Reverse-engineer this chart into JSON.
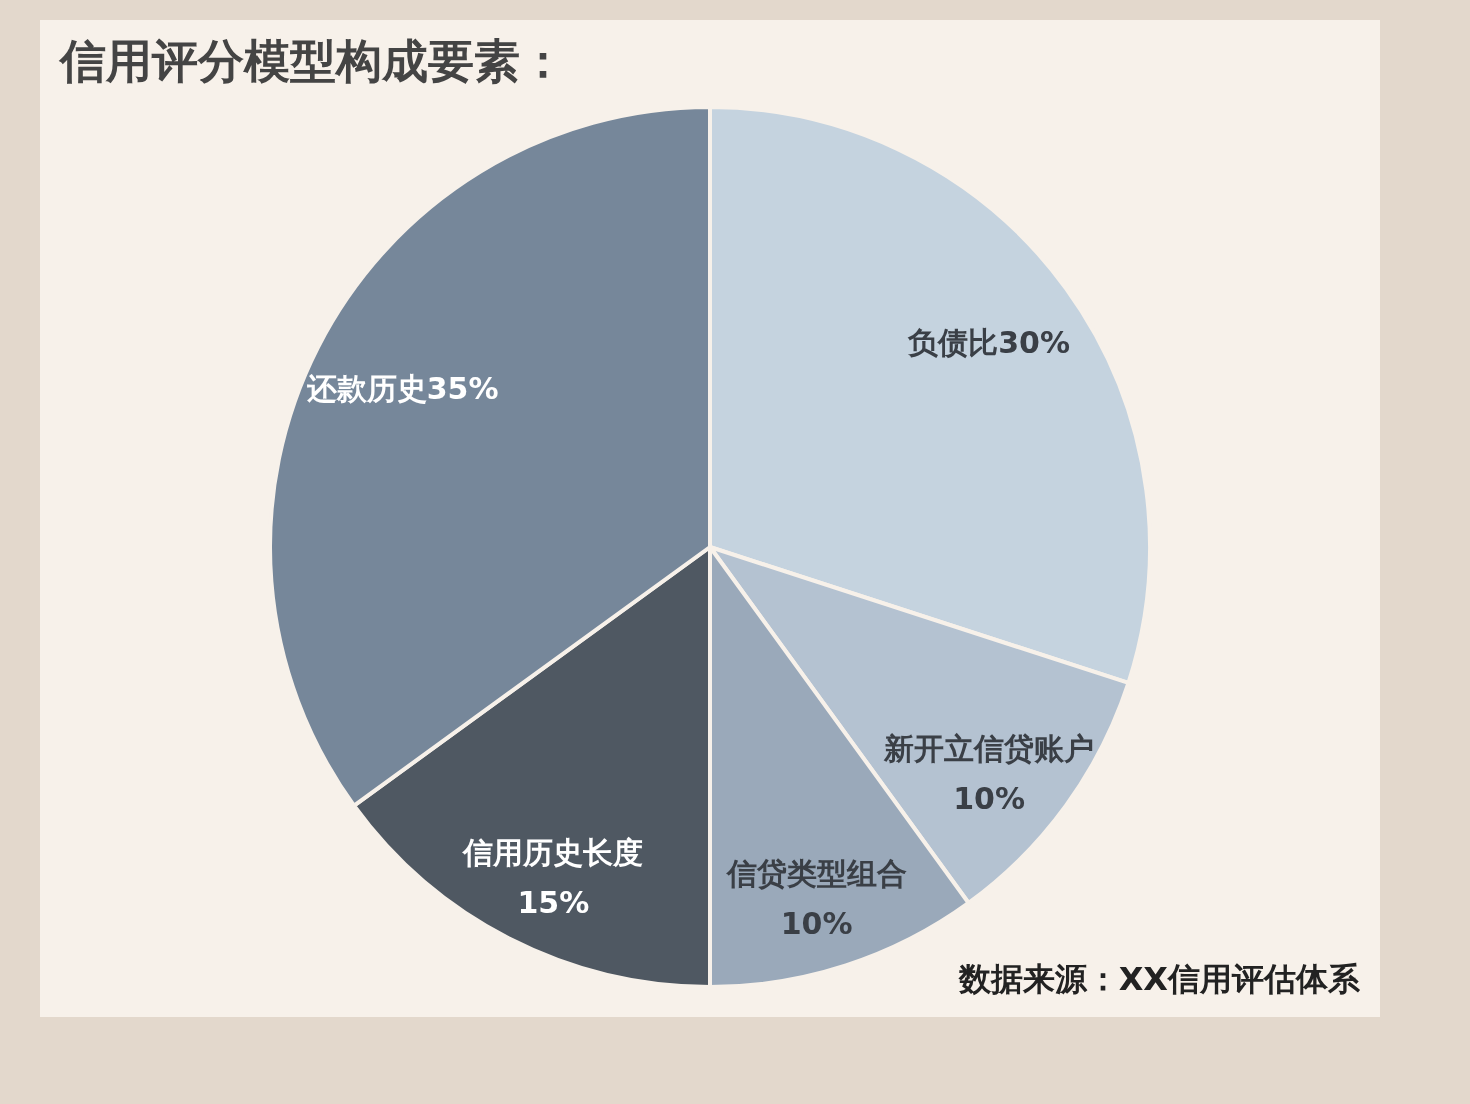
{
  "chart_data": {
    "type": "pie",
    "title": "信用评分模型构成要素：",
    "categories": [
      "负债比",
      "新开立信贷账户",
      "信贷类型组合",
      "信用历史长度",
      "还款历史"
    ],
    "values": [
      30,
      10,
      10,
      15,
      35
    ],
    "value_labels": [
      "30%",
      "10%",
      "10%",
      "15%",
      "35%"
    ],
    "colors": [
      "#c5d3df",
      "#b4c2d1",
      "#9aa9ba",
      "#4f5862",
      "#76879a"
    ],
    "annotations": [
      "数据来源：XX信用评估体系"
    ],
    "legend": false
  }
}
